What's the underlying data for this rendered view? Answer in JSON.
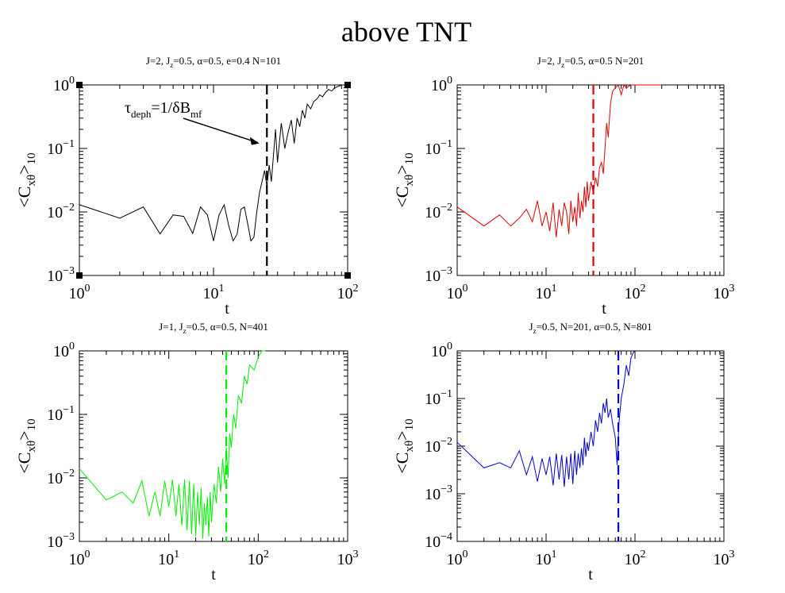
{
  "title": "above TNT",
  "chart_data": [
    {
      "type": "line",
      "title": "J=2, J_z=0.5, α=0.5, e=0.4 N=101",
      "title_parts": [
        {
          "t": "J=2, J"
        },
        {
          "t": "z",
          "sub": true
        },
        {
          "t": "=0.5, α=0.5, e=0.4 N=101"
        }
      ],
      "xlabel": "t",
      "ylabel": "<C_xθ>_10",
      "xscale": "log",
      "yscale": "log",
      "xlim": [
        1,
        100
      ],
      "ylim": [
        0.001,
        1
      ],
      "xticks": [
        1,
        10,
        100
      ],
      "yticks": [
        0.001,
        0.01,
        0.1,
        1
      ],
      "color": "#000000",
      "vline": 25,
      "annotation": {
        "text": "τ_deph=1/δB_mf",
        "points_to": [
          22,
          0.12
        ]
      },
      "series": [
        {
          "x": [
            1,
            2,
            3,
            4,
            5,
            6,
            7,
            8,
            9,
            10,
            11,
            12,
            13,
            14,
            15,
            16,
            17,
            18,
            19,
            20,
            21,
            22,
            23,
            24,
            25,
            26,
            27,
            28,
            29,
            30,
            32,
            34,
            36,
            38,
            40,
            42,
            44,
            46,
            48,
            50,
            53,
            56,
            59,
            62,
            65,
            68,
            72,
            76,
            80,
            85,
            90,
            95,
            100
          ],
          "y": [
            0.013,
            0.008,
            0.012,
            0.0045,
            0.009,
            0.0085,
            0.0046,
            0.012,
            0.009,
            0.0035,
            0.009,
            0.013,
            0.006,
            0.0035,
            0.0045,
            0.011,
            0.012,
            0.0065,
            0.0035,
            0.004,
            0.01,
            0.02,
            0.03,
            0.045,
            0.025,
            0.055,
            0.03,
            0.08,
            0.2,
            0.06,
            0.25,
            0.1,
            0.18,
            0.28,
            0.12,
            0.3,
            0.22,
            0.4,
            0.3,
            0.5,
            0.42,
            0.55,
            0.6,
            0.7,
            0.65,
            0.75,
            0.85,
            0.8,
            0.9,
            0.95,
            1,
            1,
            1
          ]
        }
      ]
    },
    {
      "type": "line",
      "title": "J=2, J_z=0.5, α=0.5 N=201",
      "title_parts": [
        {
          "t": "J=2, J"
        },
        {
          "t": "z",
          "sub": true
        },
        {
          "t": "=0.5, α=0.5 N=201"
        }
      ],
      "xlabel": "t",
      "ylabel": "<C_xθ>_10",
      "xscale": "log",
      "yscale": "log",
      "xlim": [
        1,
        1000
      ],
      "ylim": [
        0.001,
        1
      ],
      "xticks": [
        1,
        10,
        100,
        1000
      ],
      "yticks": [
        0.001,
        0.01,
        0.1,
        1
      ],
      "color": "#dd0000",
      "vline": 34,
      "series": [
        {
          "x": [
            1,
            2,
            3,
            4,
            5,
            6,
            7,
            8,
            9,
            10,
            11,
            12,
            13,
            14,
            15,
            16,
            17,
            18,
            19,
            20,
            21,
            22,
            23,
            24,
            25,
            26,
            27,
            28,
            29,
            30,
            32,
            34,
            36,
            38,
            40,
            42,
            44,
            46,
            48,
            50,
            53,
            56,
            60,
            65,
            70,
            75,
            80,
            90,
            100,
            120,
            150,
            200
          ],
          "y": [
            0.012,
            0.006,
            0.009,
            0.006,
            0.008,
            0.011,
            0.007,
            0.015,
            0.006,
            0.01,
            0.005,
            0.014,
            0.004,
            0.011,
            0.006,
            0.014,
            0.01,
            0.0045,
            0.015,
            0.007,
            0.012,
            0.006,
            0.02,
            0.008,
            0.015,
            0.01,
            0.025,
            0.012,
            0.03,
            0.015,
            0.03,
            0.02,
            0.035,
            0.025,
            0.05,
            0.06,
            0.04,
            0.1,
            0.25,
            0.15,
            0.5,
            0.8,
            0.9,
            1,
            0.7,
            1,
            0.9,
            1,
            1,
            1,
            1,
            1
          ]
        }
      ]
    },
    {
      "type": "line",
      "title": "J=1, J_z=0.5, α=0.5, N=401",
      "title_parts": [
        {
          "t": "J=1, J"
        },
        {
          "t": "z",
          "sub": true
        },
        {
          "t": "=0.5, α=0.5, N=401"
        }
      ],
      "xlabel": "t",
      "ylabel": "<C_xθ>_10",
      "xscale": "log",
      "yscale": "log",
      "xlim": [
        1,
        1000
      ],
      "ylim": [
        0.001,
        1
      ],
      "xticks": [
        1,
        10,
        100,
        1000
      ],
      "yticks": [
        0.001,
        0.01,
        0.1,
        1
      ],
      "color": "#00ee00",
      "vline": 44,
      "series": [
        {
          "x": [
            1,
            2,
            3,
            4,
            5,
            6,
            7,
            8,
            9,
            10,
            11,
            12,
            13,
            14,
            15,
            16,
            17,
            18,
            19,
            20,
            21,
            22,
            23,
            24,
            25,
            26,
            27,
            28,
            29,
            30,
            32,
            34,
            36,
            38,
            40,
            42,
            44,
            46,
            48,
            50,
            53,
            56,
            60,
            65,
            70,
            75,
            80,
            90,
            100,
            110,
            120
          ],
          "y": [
            0.014,
            0.0045,
            0.006,
            0.004,
            0.009,
            0.0025,
            0.006,
            0.0025,
            0.009,
            0.0035,
            0.0095,
            0.0025,
            0.008,
            0.0018,
            0.0095,
            0.0015,
            0.009,
            0.0013,
            0.008,
            0.0012,
            0.006,
            0.0018,
            0.007,
            0.0011,
            0.004,
            0.0018,
            0.005,
            0.0012,
            0.006,
            0.002,
            0.008,
            0.004,
            0.015,
            0.006,
            0.02,
            0.008,
            0.03,
            0.01,
            0.05,
            0.03,
            0.1,
            0.06,
            0.2,
            0.15,
            0.4,
            0.3,
            0.6,
            0.5,
            0.8,
            1,
            1
          ]
        }
      ]
    },
    {
      "type": "line",
      "title": "J_z=0.5, N=201, α=0.5, N=801",
      "title_parts": [
        {
          "t": "J"
        },
        {
          "t": "z",
          "sub": true
        },
        {
          "t": "=0.5, N=201, α=0.5, N=801"
        }
      ],
      "xlabel": "t",
      "ylabel": "<C_xθ>_10",
      "xscale": "log",
      "yscale": "log",
      "xlim": [
        1,
        1000
      ],
      "ylim": [
        0.0001,
        1
      ],
      "xticks": [
        1,
        10,
        100,
        1000
      ],
      "yticks": [
        0.0001,
        0.001,
        0.01,
        0.1,
        1
      ],
      "color": "#0000cc",
      "vline": 65,
      "series": [
        {
          "x": [
            1,
            2,
            3,
            4,
            5,
            6,
            7,
            8,
            9,
            10,
            11,
            12,
            13,
            14,
            15,
            16,
            17,
            18,
            19,
            20,
            21,
            22,
            23,
            24,
            25,
            26,
            27,
            28,
            29,
            30,
            32,
            34,
            36,
            38,
            40,
            42,
            44,
            46,
            48,
            50,
            53,
            56,
            60,
            63,
            66,
            70,
            75,
            80,
            85,
            90,
            95,
            100
          ],
          "y": [
            0.012,
            0.0035,
            0.0045,
            0.0035,
            0.008,
            0.0025,
            0.006,
            0.0018,
            0.0055,
            0.0025,
            0.006,
            0.0015,
            0.007,
            0.002,
            0.0065,
            0.0014,
            0.006,
            0.002,
            0.007,
            0.0016,
            0.008,
            0.0025,
            0.007,
            0.0035,
            0.009,
            0.004,
            0.015,
            0.006,
            0.012,
            0.008,
            0.02,
            0.01,
            0.035,
            0.02,
            0.05,
            0.03,
            0.08,
            0.05,
            0.1,
            0.04,
            0.06,
            0.03,
            0.015,
            0.004,
            0.03,
            0.1,
            0.2,
            0.5,
            0.3,
            0.7,
            0.9,
            1
          ]
        }
      ]
    }
  ]
}
